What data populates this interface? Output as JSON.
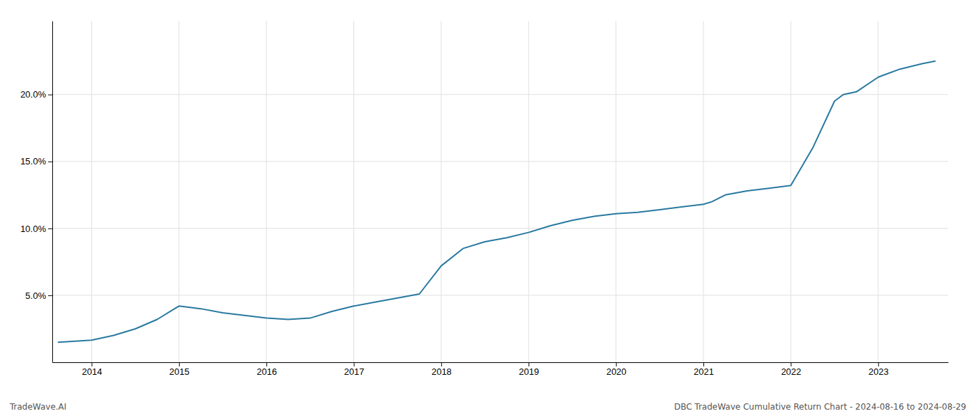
{
  "chart_data": {
    "type": "line",
    "x": [
      2013.62,
      2014.0,
      2014.25,
      2014.5,
      2014.75,
      2015.0,
      2015.25,
      2015.5,
      2015.75,
      2016.0,
      2016.25,
      2016.5,
      2016.75,
      2017.0,
      2017.25,
      2017.5,
      2017.75,
      2018.0,
      2018.25,
      2018.5,
      2018.75,
      2019.0,
      2019.25,
      2019.5,
      2019.75,
      2020.0,
      2020.25,
      2020.5,
      2020.75,
      2021.0,
      2021.1,
      2021.25,
      2021.5,
      2021.75,
      2022.0,
      2022.25,
      2022.5,
      2022.6,
      2022.75,
      2023.0,
      2023.25,
      2023.5,
      2023.65
    ],
    "values": [
      1.5,
      1.65,
      2.0,
      2.5,
      3.2,
      4.2,
      4.0,
      3.7,
      3.5,
      3.3,
      3.2,
      3.3,
      3.8,
      4.2,
      4.5,
      4.8,
      5.1,
      7.2,
      8.5,
      9.0,
      9.3,
      9.7,
      10.2,
      10.6,
      10.9,
      11.1,
      11.2,
      11.4,
      11.6,
      11.8,
      12.0,
      12.5,
      12.8,
      13.0,
      13.2,
      16.0,
      19.5,
      20.0,
      20.2,
      21.3,
      21.9,
      22.3,
      22.5
    ],
    "color": "#2878a0",
    "xlim": [
      2013.55,
      2023.8
    ],
    "xticks": [
      2014,
      2015,
      2016,
      2017,
      2018,
      2019,
      2020,
      2021,
      2022,
      2023
    ],
    "ylim": [
      0.0,
      25.5
    ],
    "yticks": [
      {
        "value": 5.0,
        "label": "5.0%"
      },
      {
        "value": 10.0,
        "label": "10.0%"
      },
      {
        "value": 15.0,
        "label": "15.0%"
      },
      {
        "value": 20.0,
        "label": "20.0%"
      }
    ],
    "grid": true,
    "annotations": [
      "TradeWave.AI",
      "DBC TradeWave Cumulative Return Chart - 2024-08-16 to 2024-08-29"
    ]
  }
}
